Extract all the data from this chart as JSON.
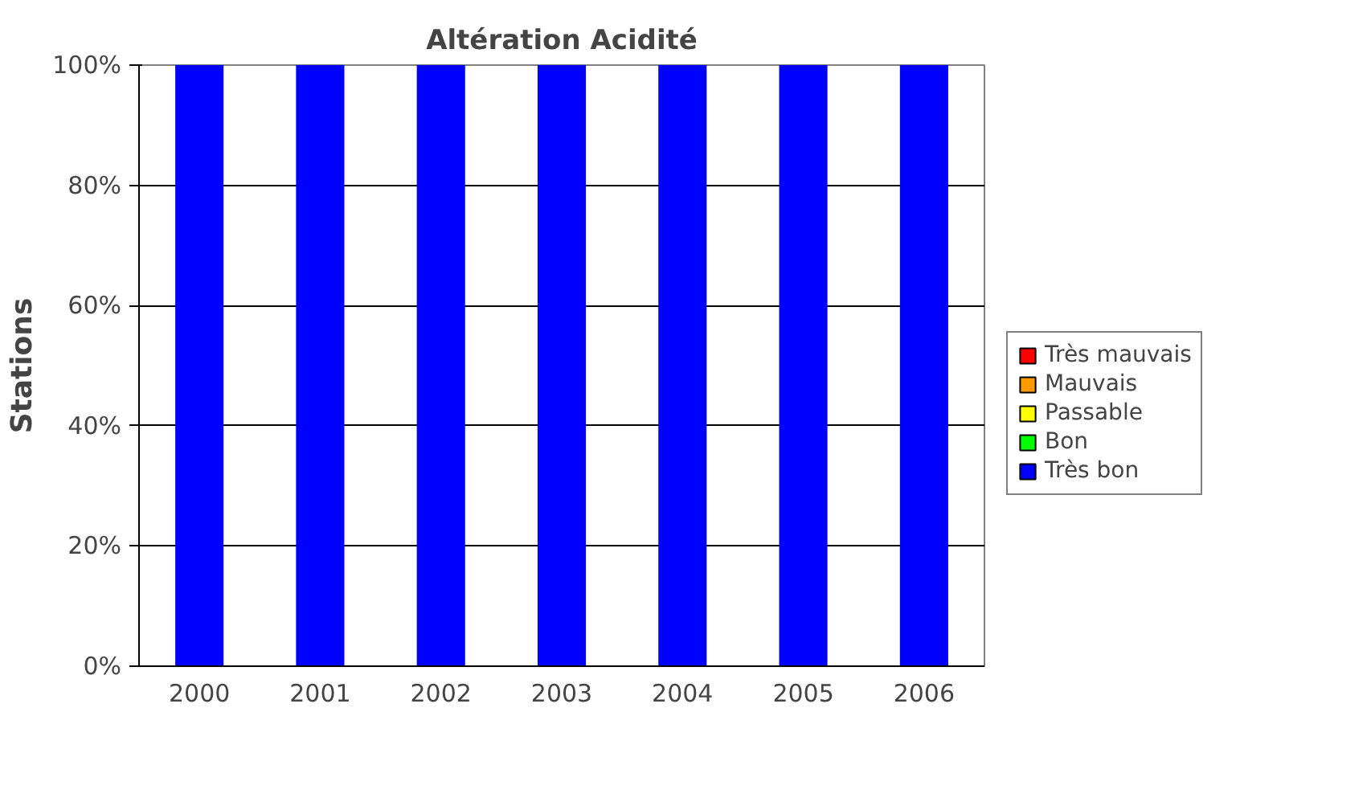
{
  "chart_data": {
    "type": "bar",
    "title": "Altération Acidité",
    "ylabel": "Stations",
    "categories": [
      "2000",
      "2001",
      "2002",
      "2003",
      "2004",
      "2005",
      "2006"
    ],
    "stacked": true,
    "series": [
      {
        "name": "Très bon",
        "color": "#0000ff",
        "values": [
          100,
          100,
          100,
          100,
          100,
          100,
          100
        ]
      },
      {
        "name": "Bon",
        "color": "#00ff00",
        "values": [
          0,
          0,
          0,
          0,
          0,
          0,
          0
        ]
      },
      {
        "name": "Passable",
        "color": "#ffff00",
        "values": [
          0,
          0,
          0,
          0,
          0,
          0,
          0
        ]
      },
      {
        "name": "Mauvais",
        "color": "#ff9900",
        "values": [
          0,
          0,
          0,
          0,
          0,
          0,
          0
        ]
      },
      {
        "name": "Très mauvais",
        "color": "#ff0000",
        "values": [
          0,
          0,
          0,
          0,
          0,
          0,
          0
        ]
      }
    ],
    "ylim": [
      0,
      100
    ],
    "yticks": [
      {
        "value": 0,
        "label": "0%"
      },
      {
        "value": 20,
        "label": "20%"
      },
      {
        "value": 40,
        "label": "40%"
      },
      {
        "value": 60,
        "label": "60%"
      },
      {
        "value": 80,
        "label": "80%"
      },
      {
        "value": 100,
        "label": "100%"
      }
    ],
    "grid": "y",
    "legend": "right"
  }
}
